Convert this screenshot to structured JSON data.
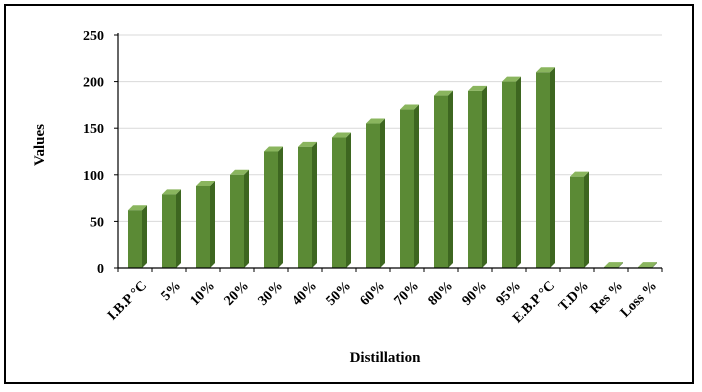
{
  "chart_data": {
    "type": "bar",
    "title": "",
    "xlabel": "Distillation",
    "ylabel": "Values",
    "ylim": [
      0,
      250
    ],
    "yticks": [
      0,
      50,
      100,
      150,
      200,
      250
    ],
    "grid": true,
    "legend": "none",
    "categories": [
      "I.B.P °C",
      "5%",
      "10%",
      "20%",
      "30%",
      "40%",
      "50%",
      "60%",
      "70%",
      "80%",
      "90%",
      "95%",
      "E.B.P °C",
      "T.D%",
      "Res %",
      "Loss %"
    ],
    "values": [
      62,
      79,
      88,
      100,
      125,
      130,
      140,
      155,
      170,
      185,
      190,
      200,
      210,
      98,
      1,
      1
    ],
    "colors": {
      "bar_front": "#5b8a35",
      "bar_side": "#3d6620",
      "bar_top": "#8ab55e",
      "grid": "#d9d9d9",
      "axis": "#000000"
    }
  }
}
